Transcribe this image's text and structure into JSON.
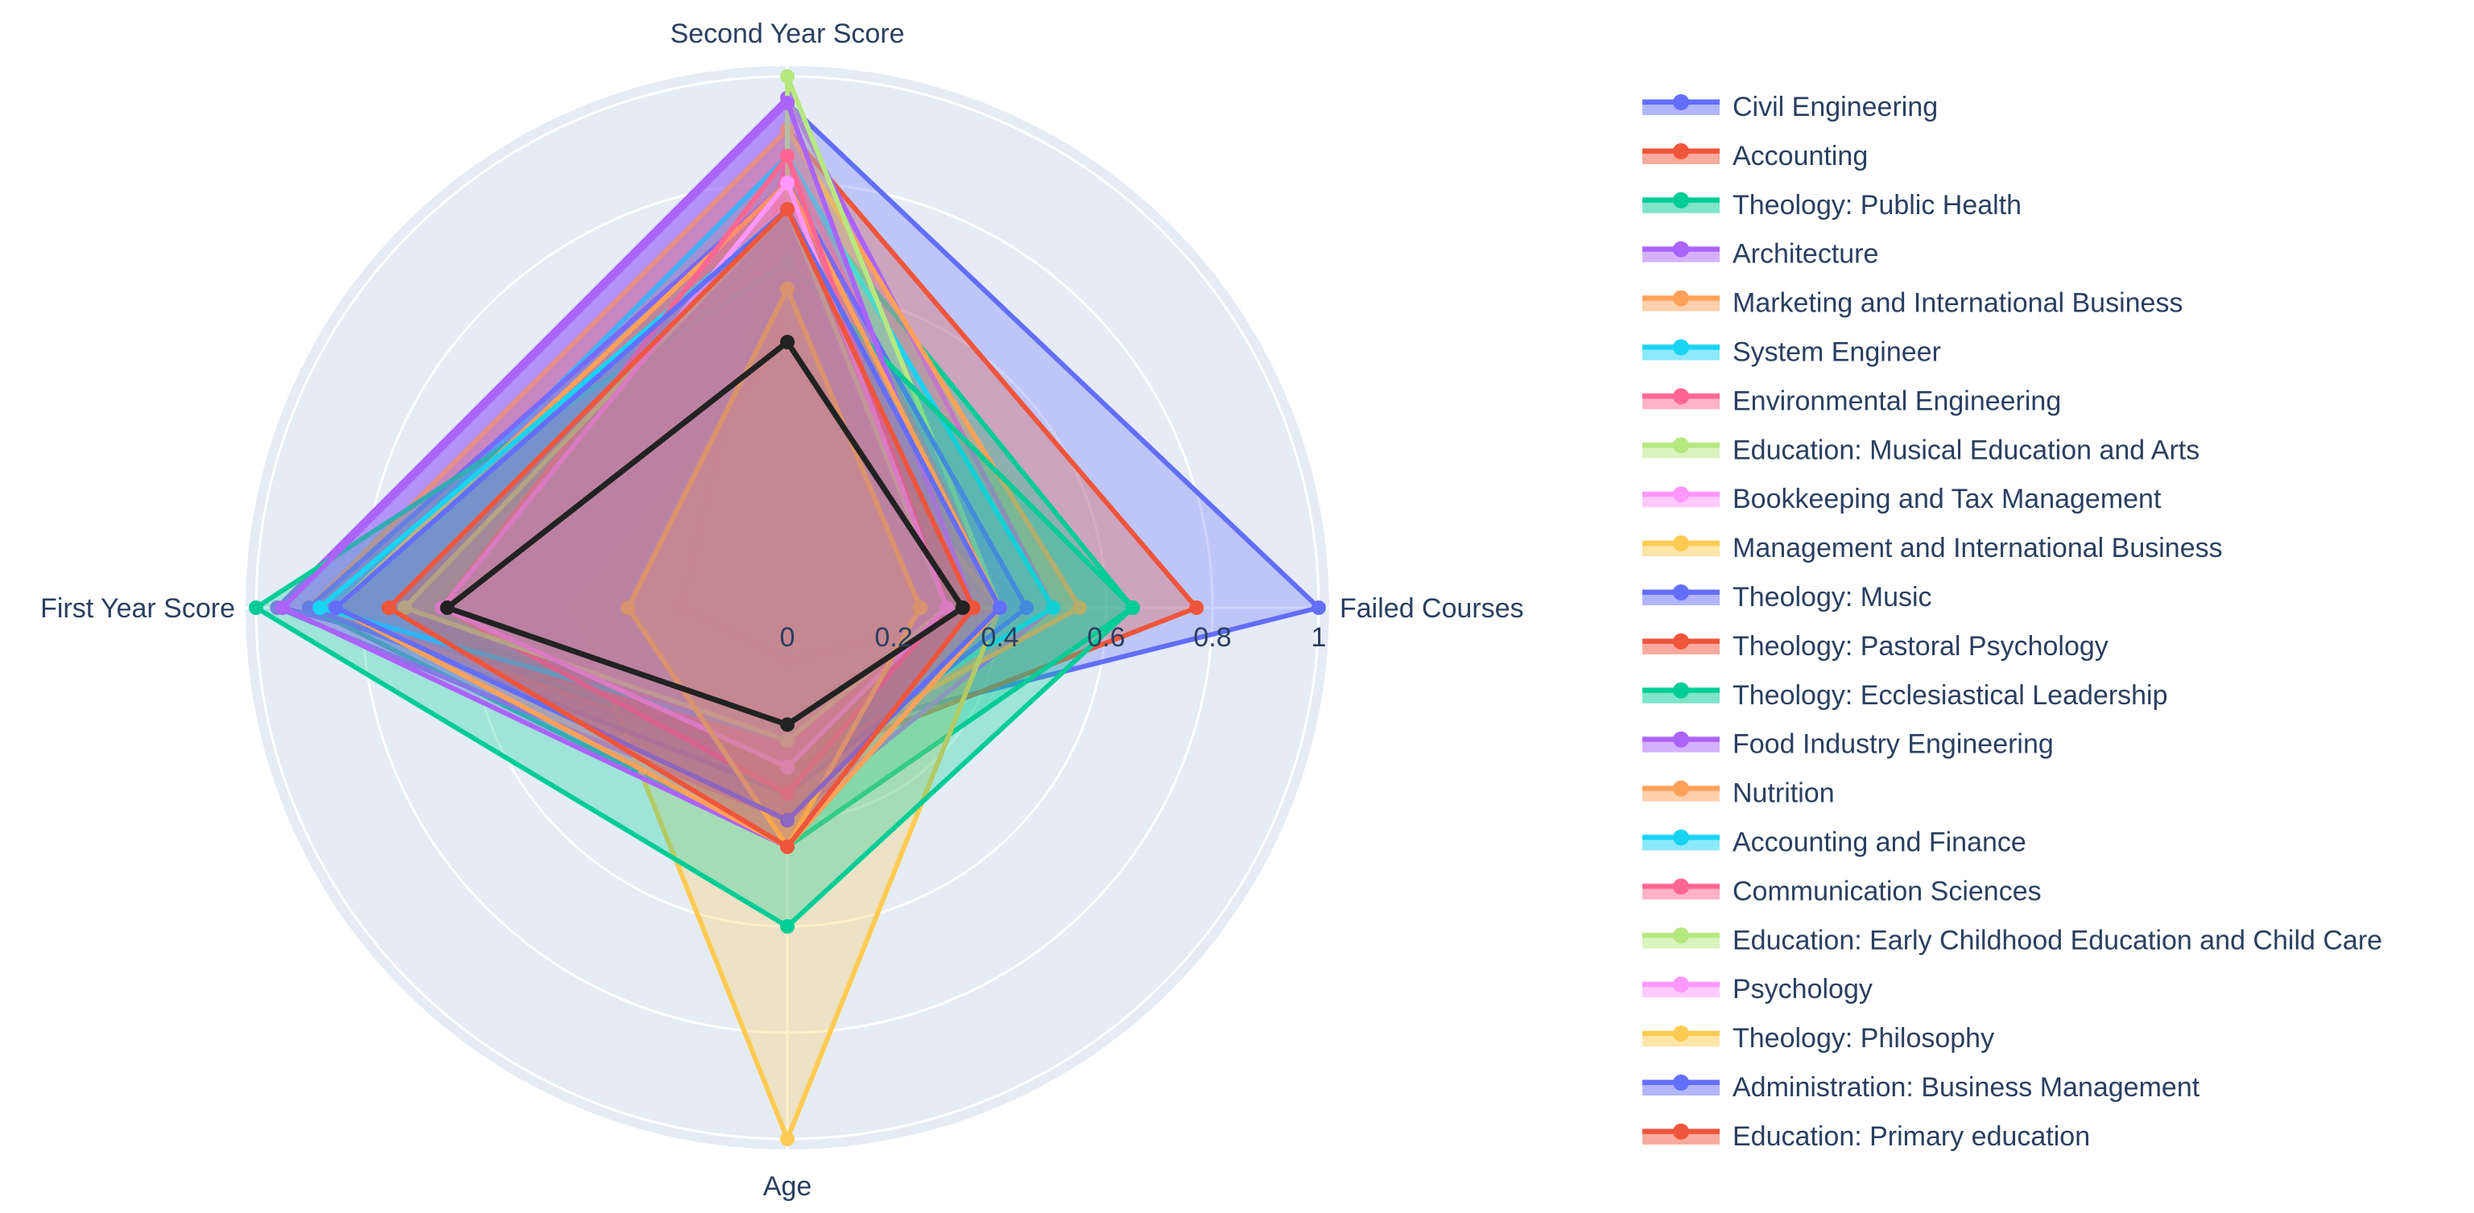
{
  "chart_data": {
    "type": "radar",
    "title": "",
    "axes": [
      "Failed Courses",
      "Second Year Score",
      "First Year Score",
      "Age"
    ],
    "radial_range": [
      0,
      1
    ],
    "radial_ticks": [
      "0",
      "0.2",
      "0.4",
      "0.6",
      "0.8",
      "1"
    ],
    "radial_tick_values": [
      0,
      0.2,
      0.4,
      0.6,
      0.8,
      1.0
    ],
    "legend_position": "right",
    "series": [
      {
        "name": "Civil Engineering",
        "color": "#636efa",
        "values": [
          1.0,
          0.95,
          0.95,
          0.25
        ]
      },
      {
        "name": "Accounting",
        "color": "#ef553b",
        "values": [
          0.77,
          0.9,
          0.9,
          0.3
        ]
      },
      {
        "name": "Theology: Public Health",
        "color": "#00cc96",
        "values": [
          0.65,
          0.8,
          0.9,
          0.45
        ]
      },
      {
        "name": "Architecture",
        "color": "#ab63fa",
        "values": [
          0.5,
          0.96,
          0.96,
          0.4
        ]
      },
      {
        "name": "Marketing and International Business",
        "color": "#ffa15a",
        "values": [
          0.55,
          0.9,
          0.9,
          0.3
        ]
      },
      {
        "name": "System Engineer",
        "color": "#19d3f3",
        "values": [
          0.5,
          0.85,
          0.85,
          0.3
        ]
      },
      {
        "name": "Environmental Engineering",
        "color": "#ff6692",
        "values": [
          0.4,
          0.85,
          0.2,
          0.1
        ]
      },
      {
        "name": "Education: Musical Education and Arts",
        "color": "#b6e880",
        "values": [
          0.4,
          1.0,
          0.0,
          0.0
        ]
      },
      {
        "name": "Bookkeeping and Tax Management",
        "color": "#ff97ff",
        "values": [
          0.3,
          0.7,
          0.7,
          0.3
        ]
      },
      {
        "name": "Management and International Business",
        "color": "#fecb52",
        "values": [
          0.4,
          0.5,
          0.4,
          1.0
        ]
      },
      {
        "name": "Theology: Music",
        "color": "#636efa",
        "values": [
          0.45,
          0.8,
          0.9,
          0.35
        ]
      },
      {
        "name": "Theology: Pastoral Psychology",
        "color": "#ef553b",
        "values": [
          0.4,
          0.8,
          0.85,
          0.4
        ]
      },
      {
        "name": "Theology: Ecclesiastical Leadership",
        "color": "#00cc96",
        "values": [
          0.65,
          0.65,
          1.0,
          0.6
        ]
      },
      {
        "name": "Food Industry Engineering",
        "color": "#ab63fa",
        "values": [
          0.35,
          0.95,
          0.95,
          0.45
        ]
      },
      {
        "name": "Nutrition",
        "color": "#ffa15a",
        "values": [
          0.4,
          0.8,
          0.85,
          0.45
        ]
      },
      {
        "name": "Accounting and Finance",
        "color": "#19d3f3",
        "values": [
          0.3,
          0.75,
          0.88,
          0.25
        ]
      },
      {
        "name": "Communication Sciences",
        "color": "#ff6692",
        "values": [
          0.3,
          0.85,
          0.65,
          0.35
        ]
      },
      {
        "name": "Education: Early Childhood Education and Child Care",
        "color": "#b6e880",
        "values": [
          0.3,
          0.75,
          0.72,
          0.25
        ]
      },
      {
        "name": "Psychology",
        "color": "#ff97ff",
        "values": [
          0.3,
          0.8,
          0.65,
          0.3
        ]
      },
      {
        "name": "Theology: Philosophy",
        "color": "#fecb52",
        "values": [
          0.25,
          0.6,
          0.3,
          0.45
        ]
      },
      {
        "name": "Administration: Business Management",
        "color": "#636efa",
        "values": [
          0.4,
          0.75,
          0.85,
          0.4
        ]
      },
      {
        "name": "Education: Primary education",
        "color": "#ef553b",
        "values": [
          0.35,
          0.75,
          0.75,
          0.45
        ]
      }
    ],
    "average_series": {
      "name": "",
      "color": "#222222",
      "values": [
        0.33,
        0.5,
        0.64,
        0.22
      ]
    }
  }
}
